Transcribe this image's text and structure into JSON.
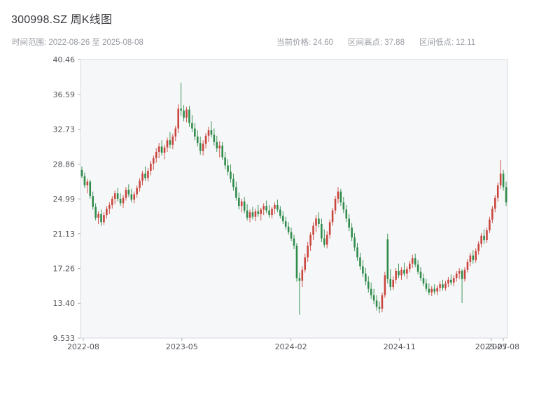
{
  "header": {
    "title": "300998.SZ 周K线图",
    "date_range": "时间范围: 2022-08-26 至 2025-08-08",
    "stats": [
      {
        "label": "当前价格:",
        "value": "24.60"
      },
      {
        "label": "区间高点:",
        "value": "37.88"
      },
      {
        "label": "区间低点:",
        "value": "12.11"
      }
    ]
  },
  "chart_data": {
    "type": "candlestick",
    "title": "300998.SZ 周K线图",
    "symbol": "300998.SZ",
    "interval": "weekly",
    "start_date": "2022-08-26",
    "end_date": "2025-08-08",
    "current_price": 24.6,
    "range_high": 37.88,
    "range_low": 12.11,
    "ylim": [
      9.533,
      40.46
    ],
    "yticks": [
      "40.46",
      "36.59",
      "32.73",
      "28.86",
      "24.99",
      "21.13",
      "17.26",
      "13.40",
      "9.533"
    ],
    "xticks": [
      {
        "label": "2022-08",
        "week": 0.5
      },
      {
        "label": "2023-05",
        "week": 36.3
      },
      {
        "label": "2024-02",
        "week": 75.9
      },
      {
        "label": "2024-11",
        "week": 115.3
      },
      {
        "label": "2025-07",
        "week": 148.6
      },
      {
        "label": "2025-08",
        "week": 153.0
      }
    ],
    "colors": {
      "up": "#c9443d",
      "down": "#2e8b4a",
      "plot_bg": "#f6f7f8",
      "plot_border": "#d7dade",
      "tick": "#9aa0a6"
    },
    "grid": false,
    "legend": false,
    "candles": [
      [
        28.2,
        28.6,
        27.3,
        27.5
      ],
      [
        27.5,
        27.9,
        26.2,
        26.5
      ],
      [
        26.5,
        27.2,
        25.6,
        26.9
      ],
      [
        26.9,
        27.1,
        25.0,
        25.3
      ],
      [
        25.3,
        25.8,
        23.8,
        24.1
      ],
      [
        24.1,
        24.5,
        22.6,
        22.9
      ],
      [
        22.9,
        23.6,
        22.2,
        23.3
      ],
      [
        23.3,
        23.8,
        22.0,
        22.4
      ],
      [
        22.4,
        23.5,
        22.1,
        23.2
      ],
      [
        23.2,
        24.2,
        22.8,
        23.9
      ],
      [
        23.9,
        24.6,
        23.3,
        24.3
      ],
      [
        24.3,
        25.3,
        23.9,
        25.0
      ],
      [
        25.0,
        25.9,
        24.4,
        25.6
      ],
      [
        25.6,
        26.2,
        24.7,
        25.0
      ],
      [
        25.0,
        25.6,
        24.2,
        24.5
      ],
      [
        24.5,
        25.4,
        24.0,
        25.1
      ],
      [
        25.1,
        26.3,
        24.8,
        26.0
      ],
      [
        26.0,
        26.6,
        25.2,
        25.5
      ],
      [
        25.5,
        26.1,
        24.6,
        24.9
      ],
      [
        24.9,
        25.8,
        24.5,
        25.5
      ],
      [
        25.5,
        26.5,
        25.1,
        26.2
      ],
      [
        26.2,
        27.3,
        25.8,
        27.0
      ],
      [
        27.0,
        28.1,
        26.5,
        27.8
      ],
      [
        27.8,
        28.6,
        27.0,
        27.3
      ],
      [
        27.3,
        28.4,
        26.9,
        28.1
      ],
      [
        28.1,
        29.2,
        27.6,
        28.9
      ],
      [
        28.9,
        29.8,
        28.2,
        29.5
      ],
      [
        29.5,
        30.6,
        29.0,
        30.2
      ],
      [
        30.2,
        31.2,
        29.5,
        30.8
      ],
      [
        30.8,
        31.5,
        29.8,
        30.1
      ],
      [
        30.1,
        31.0,
        29.4,
        30.7
      ],
      [
        30.7,
        31.8,
        30.2,
        31.5
      ],
      [
        31.5,
        32.4,
        30.6,
        31.0
      ],
      [
        31.0,
        32.2,
        30.5,
        31.9
      ],
      [
        31.9,
        33.1,
        31.4,
        32.8
      ],
      [
        32.8,
        35.5,
        32.3,
        35.0
      ],
      [
        35.0,
        37.88,
        34.2,
        34.8
      ],
      [
        34.8,
        35.4,
        33.6,
        34.0
      ],
      [
        34.0,
        35.2,
        33.5,
        34.9
      ],
      [
        34.9,
        35.3,
        33.0,
        33.4
      ],
      [
        33.4,
        34.3,
        32.4,
        32.8
      ],
      [
        32.8,
        33.4,
        31.5,
        31.9
      ],
      [
        31.9,
        32.6,
        30.8,
        31.2
      ],
      [
        31.2,
        31.9,
        29.9,
        30.3
      ],
      [
        30.3,
        31.5,
        29.8,
        31.1
      ],
      [
        31.1,
        32.3,
        30.6,
        32.0
      ],
      [
        32.0,
        33.0,
        31.3,
        32.6
      ],
      [
        32.6,
        33.6,
        31.8,
        32.1
      ],
      [
        32.1,
        32.8,
        30.9,
        31.3
      ],
      [
        31.3,
        32.0,
        30.2,
        30.6
      ],
      [
        30.6,
        31.4,
        29.6,
        30.9
      ],
      [
        30.9,
        31.3,
        29.3,
        29.6
      ],
      [
        29.6,
        30.2,
        28.3,
        28.7
      ],
      [
        28.7,
        29.4,
        27.6,
        28.0
      ],
      [
        28.0,
        28.8,
        26.8,
        27.2
      ],
      [
        27.2,
        27.8,
        25.9,
        26.3
      ],
      [
        26.3,
        26.9,
        24.8,
        25.1
      ],
      [
        25.1,
        25.7,
        23.8,
        24.2
      ],
      [
        24.2,
        25.0,
        23.5,
        24.7
      ],
      [
        24.7,
        25.2,
        23.4,
        23.7
      ],
      [
        23.7,
        24.4,
        22.6,
        22.9
      ],
      [
        22.9,
        23.8,
        22.4,
        23.5
      ],
      [
        23.5,
        24.1,
        22.7,
        23.0
      ],
      [
        23.0,
        23.9,
        22.5,
        23.6
      ],
      [
        23.6,
        24.3,
        23.0,
        23.3
      ],
      [
        23.3,
        24.0,
        22.6,
        23.8
      ],
      [
        23.8,
        24.5,
        23.2,
        24.2
      ],
      [
        24.2,
        24.8,
        23.4,
        23.7
      ],
      [
        23.7,
        24.3,
        22.9,
        23.2
      ],
      [
        23.2,
        24.1,
        22.8,
        23.9
      ],
      [
        23.9,
        24.6,
        23.3,
        24.3
      ],
      [
        24.3,
        24.9,
        23.5,
        23.8
      ],
      [
        23.8,
        24.2,
        22.8,
        23.1
      ],
      [
        23.1,
        23.6,
        22.2,
        22.5
      ],
      [
        22.5,
        23.0,
        21.6,
        21.9
      ],
      [
        21.9,
        22.4,
        21.0,
        21.3
      ],
      [
        21.3,
        21.8,
        20.3,
        20.6
      ],
      [
        20.6,
        21.0,
        19.4,
        19.8
      ],
      [
        19.8,
        20.1,
        15.8,
        16.2
      ],
      [
        16.2,
        16.8,
        12.11,
        15.9
      ],
      [
        15.9,
        17.5,
        15.2,
        17.1
      ],
      [
        17.1,
        18.9,
        16.8,
        18.5
      ],
      [
        18.5,
        20.2,
        18.0,
        19.8
      ],
      [
        19.8,
        21.3,
        19.2,
        21.0
      ],
      [
        21.0,
        22.4,
        20.4,
        22.0
      ],
      [
        22.0,
        23.2,
        21.3,
        22.8
      ],
      [
        22.8,
        23.5,
        21.8,
        22.2
      ],
      [
        22.2,
        22.8,
        20.2,
        20.6
      ],
      [
        20.6,
        21.6,
        19.6,
        19.9
      ],
      [
        19.9,
        21.4,
        19.5,
        21.0
      ],
      [
        21.0,
        22.7,
        20.6,
        22.4
      ],
      [
        22.4,
        24.0,
        22.0,
        23.7
      ],
      [
        23.7,
        25.3,
        23.3,
        25.0
      ],
      [
        25.0,
        26.3,
        24.5,
        25.8
      ],
      [
        25.8,
        26.1,
        24.2,
        24.6
      ],
      [
        24.6,
        25.2,
        23.4,
        23.8
      ],
      [
        23.8,
        24.3,
        22.4,
        22.8
      ],
      [
        22.8,
        23.3,
        21.4,
        21.8
      ],
      [
        21.8,
        22.3,
        20.3,
        20.7
      ],
      [
        20.7,
        21.2,
        19.2,
        19.6
      ],
      [
        19.6,
        20.1,
        18.1,
        18.5
      ],
      [
        18.5,
        19.0,
        17.1,
        17.5
      ],
      [
        17.5,
        18.2,
        16.3,
        16.7
      ],
      [
        16.7,
        17.3,
        15.4,
        15.8
      ],
      [
        15.8,
        16.4,
        14.6,
        15.0
      ],
      [
        15.0,
        15.7,
        13.9,
        14.3
      ],
      [
        14.3,
        15.0,
        13.3,
        13.7
      ],
      [
        13.7,
        14.3,
        12.6,
        13.0
      ],
      [
        13.0,
        13.6,
        12.3,
        12.8
      ],
      [
        12.8,
        14.6,
        12.4,
        14.3
      ],
      [
        14.3,
        16.9,
        14.0,
        16.5
      ],
      [
        20.5,
        21.13,
        15.6,
        16.1
      ],
      [
        16.1,
        17.2,
        14.8,
        15.2
      ],
      [
        15.2,
        16.4,
        14.9,
        16.0
      ],
      [
        16.0,
        17.3,
        15.6,
        17.0
      ],
      [
        17.0,
        17.8,
        16.2,
        16.5
      ],
      [
        16.5,
        17.4,
        16.0,
        17.1
      ],
      [
        17.1,
        17.9,
        16.4,
        16.7
      ],
      [
        16.7,
        17.5,
        16.1,
        17.2
      ],
      [
        17.2,
        18.1,
        16.8,
        17.8
      ],
      [
        17.8,
        18.8,
        17.3,
        18.4
      ],
      [
        18.4,
        18.9,
        17.4,
        17.7
      ],
      [
        17.7,
        18.2,
        16.6,
        16.9
      ],
      [
        16.9,
        17.4,
        15.9,
        16.2
      ],
      [
        16.2,
        16.7,
        15.3,
        15.6
      ],
      [
        15.6,
        16.1,
        14.7,
        15.0
      ],
      [
        15.0,
        15.6,
        14.3,
        14.6
      ],
      [
        14.6,
        15.3,
        14.2,
        15.0
      ],
      [
        15.0,
        15.5,
        14.4,
        14.7
      ],
      [
        14.7,
        15.4,
        14.3,
        15.1
      ],
      [
        15.1,
        15.8,
        14.7,
        15.5
      ],
      [
        15.5,
        16.0,
        14.8,
        15.1
      ],
      [
        15.1,
        15.9,
        14.8,
        15.6
      ],
      [
        15.6,
        16.3,
        15.2,
        16.0
      ],
      [
        16.0,
        16.6,
        15.4,
        15.7
      ],
      [
        15.7,
        16.5,
        15.3,
        16.2
      ],
      [
        16.2,
        17.0,
        15.8,
        16.7
      ],
      [
        16.7,
        17.3,
        16.1,
        17.0
      ],
      [
        17.0,
        17.2,
        13.42,
        16.1
      ],
      [
        16.1,
        17.4,
        15.8,
        17.1
      ],
      [
        17.1,
        18.3,
        16.8,
        18.0
      ],
      [
        18.0,
        19.0,
        17.5,
        18.7
      ],
      [
        18.7,
        19.3,
        17.8,
        18.2
      ],
      [
        18.2,
        19.5,
        17.9,
        19.2
      ],
      [
        19.2,
        20.3,
        18.8,
        20.0
      ],
      [
        20.0,
        21.2,
        19.6,
        20.9
      ],
      [
        20.9,
        21.6,
        20.0,
        20.4
      ],
      [
        20.4,
        21.8,
        20.1,
        21.5
      ],
      [
        21.5,
        23.0,
        21.2,
        22.7
      ],
      [
        22.7,
        24.2,
        22.3,
        23.9
      ],
      [
        23.9,
        25.4,
        23.5,
        25.1
      ],
      [
        25.1,
        26.8,
        24.7,
        26.5
      ],
      [
        26.5,
        29.3,
        26.1,
        27.8
      ],
      [
        27.8,
        28.2,
        25.9,
        26.3
      ],
      [
        26.3,
        26.9,
        24.2,
        24.6
      ]
    ]
  }
}
